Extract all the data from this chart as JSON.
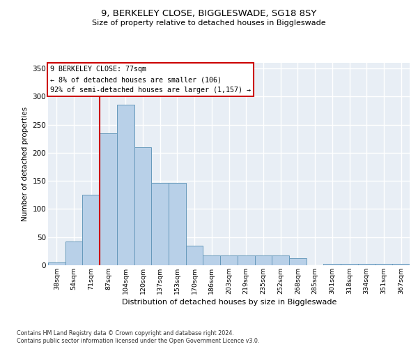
{
  "title1": "9, BERKELEY CLOSE, BIGGLESWADE, SG18 8SY",
  "title2": "Size of property relative to detached houses in Biggleswade",
  "xlabel": "Distribution of detached houses by size in Biggleswade",
  "ylabel": "Number of detached properties",
  "bar_color": "#b8d0e8",
  "bar_edge_color": "#6699bb",
  "categories": [
    "38sqm",
    "54sqm",
    "71sqm",
    "87sqm",
    "104sqm",
    "120sqm",
    "137sqm",
    "153sqm",
    "170sqm",
    "186sqm",
    "203sqm",
    "219sqm",
    "235sqm",
    "252sqm",
    "268sqm",
    "285sqm",
    "301sqm",
    "318sqm",
    "334sqm",
    "351sqm",
    "367sqm"
  ],
  "values": [
    5,
    42,
    125,
    235,
    285,
    210,
    147,
    147,
    35,
    18,
    18,
    18,
    18,
    18,
    12,
    0,
    2,
    2,
    2,
    2,
    2
  ],
  "annotation_line1": "9 BERKELEY CLOSE: 77sqm",
  "annotation_line2": "← 8% of detached houses are smaller (106)",
  "annotation_line3": "92% of semi-detached houses are larger (1,157) →",
  "vline_bin_index": 2.5,
  "ylim": [
    0,
    360
  ],
  "yticks": [
    0,
    50,
    100,
    150,
    200,
    250,
    300,
    350
  ],
  "bg_color": "#e8eef5",
  "grid_color": "#ffffff",
  "footer1": "Contains HM Land Registry data © Crown copyright and database right 2024.",
  "footer2": "Contains public sector information licensed under the Open Government Licence v3.0."
}
